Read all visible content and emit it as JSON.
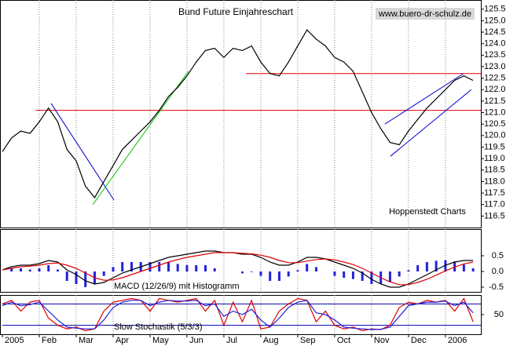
{
  "chart_data": [
    {
      "type": "line",
      "title": "Bund Future Einjahreschart",
      "annotations": [
        "www.buero-dr-schulz.de",
        "Hoppenstedt Charts"
      ],
      "x": [
        0,
        0.25,
        0.5,
        0.75,
        1,
        1.25,
        1.5,
        1.75,
        2,
        2.25,
        2.5,
        2.75,
        3,
        3.25,
        3.5,
        3.75,
        4,
        4.25,
        4.5,
        4.75,
        5,
        5.25,
        5.5,
        5.75,
        6,
        6.25,
        6.5,
        6.75,
        7,
        7.25,
        7.5,
        7.75,
        8,
        8.25,
        8.5,
        8.75,
        9,
        9.25,
        9.5,
        9.75,
        10,
        10.25,
        10.5,
        10.75,
        11,
        11.25,
        11.5,
        11.75,
        12,
        12.25,
        12.5,
        12.75
      ],
      "values": [
        119.3,
        119.9,
        120.2,
        120.1,
        120.6,
        121.2,
        120.6,
        119.4,
        118.9,
        117.8,
        117.3,
        118.0,
        118.7,
        119.4,
        119.8,
        120.2,
        120.6,
        121.1,
        121.7,
        122.1,
        122.6,
        123.2,
        123.7,
        123.8,
        123.4,
        123.8,
        123.7,
        123.9,
        123.2,
        122.7,
        122.6,
        123.2,
        123.9,
        124.6,
        124.2,
        123.9,
        123.4,
        123.2,
        122.8,
        121.9,
        121.0,
        120.3,
        119.7,
        119.6,
        120.2,
        120.7,
        121.2,
        121.6,
        122.0,
        122.4,
        122.6,
        122.4
      ],
      "color": "#000000",
      "xlim": [
        0,
        12.96
      ],
      "ylim": [
        116.0,
        125.9
      ],
      "yticks": [
        116.5,
        {
          "value": 117,
          "label": "117.0"
        },
        117.5,
        {
          "value": 118,
          "label": "118.0"
        },
        118.5,
        {
          "value": 119,
          "label": "119.0"
        },
        119.5,
        {
          "value": 120,
          "label": "120.0"
        },
        120.5,
        {
          "value": 121,
          "label": "121.0"
        },
        121.5,
        {
          "value": 122,
          "label": "122.0"
        },
        122.5,
        {
          "value": 123,
          "label": "123.0"
        },
        123.5,
        {
          "value": 124,
          "label": "124.0"
        },
        124.5,
        {
          "value": 125,
          "label": "125.0"
        },
        125.5
      ],
      "hlines": [
        {
          "value": 121.1,
          "from": 0.9,
          "color": "#e00000"
        },
        {
          "value": 122.7,
          "from": 6.6,
          "color": "#e00000"
        }
      ],
      "trendlines": [
        {
          "x": [
            1.32,
            3.02
          ],
          "y": [
            121.4,
            117.2
          ],
          "color": "#0000cc"
        },
        {
          "x": [
            2.45,
            5.04
          ],
          "y": [
            117.0,
            122.8
          ],
          "color": "#00c000"
        },
        {
          "x": [
            10.36,
            12.49
          ],
          "y": [
            120.5,
            122.7
          ],
          "color": "#0000cc"
        },
        {
          "x": [
            10.51,
            12.7
          ],
          "y": [
            119.1,
            122.0
          ],
          "color": "#0000cc"
        }
      ]
    },
    {
      "type": "macd",
      "label": "MACD (12/26/9) mit Histogramm",
      "x": [
        0,
        0.25,
        0.5,
        0.75,
        1,
        1.25,
        1.5,
        1.75,
        2,
        2.25,
        2.5,
        2.75,
        3,
        3.25,
        3.5,
        3.75,
        4,
        4.25,
        4.5,
        4.75,
        5,
        5.25,
        5.5,
        5.75,
        6,
        6.25,
        6.5,
        6.75,
        7,
        7.25,
        7.5,
        7.75,
        8,
        8.25,
        8.5,
        8.75,
        9,
        9.25,
        9.5,
        9.75,
        10,
        10.25,
        10.5,
        10.75,
        11,
        11.25,
        11.5,
        11.75,
        12,
        12.25,
        12.5,
        12.75
      ],
      "histogram": {
        "color": "#2222dd",
        "values": [
          0,
          0.1,
          0.1,
          0.06,
          0.1,
          0.2,
          0.06,
          -0.3,
          -0.4,
          -0.5,
          -0.4,
          -0.14,
          0.14,
          0.3,
          0.3,
          0.3,
          0.3,
          0.3,
          0.3,
          0.24,
          0.2,
          0.2,
          0.2,
          0.1,
          0,
          0,
          -0.06,
          -0.02,
          -0.14,
          -0.3,
          -0.3,
          -0.16,
          0.04,
          0.24,
          0.14,
          0,
          -0.14,
          -0.2,
          -0.24,
          -0.3,
          -0.4,
          -0.4,
          -0.34,
          -0.16,
          0.04,
          0.2,
          0.3,
          0.34,
          0.36,
          0.32,
          0.22,
          0.1
        ]
      },
      "series": [
        {
          "color": "#000000",
          "values": [
            0.05,
            0.15,
            0.2,
            0.2,
            0.25,
            0.35,
            0.3,
            0.05,
            -0.1,
            -0.3,
            -0.4,
            -0.35,
            -0.2,
            -0.05,
            0.05,
            0.15,
            0.25,
            0.35,
            0.45,
            0.5,
            0.55,
            0.6,
            0.65,
            0.65,
            0.6,
            0.6,
            0.55,
            0.55,
            0.45,
            0.3,
            0.2,
            0.2,
            0.3,
            0.45,
            0.45,
            0.4,
            0.3,
            0.2,
            0.1,
            -0.05,
            -0.25,
            -0.4,
            -0.5,
            -0.5,
            -0.4,
            -0.25,
            -0.1,
            0.05,
            0.2,
            0.3,
            0.35,
            0.35
          ]
        },
        {
          "color": "#dd0000",
          "values": [
            0.05,
            0.1,
            0.15,
            0.17,
            0.2,
            0.25,
            0.27,
            0.2,
            0.1,
            -0.05,
            -0.2,
            -0.28,
            -0.27,
            -0.2,
            -0.1,
            0,
            0.1,
            0.2,
            0.3,
            0.38,
            0.45,
            0.5,
            0.55,
            0.6,
            0.6,
            0.6,
            0.58,
            0.56,
            0.52,
            0.45,
            0.35,
            0.28,
            0.28,
            0.33,
            0.38,
            0.4,
            0.37,
            0.3,
            0.22,
            0.1,
            -0.05,
            -0.2,
            -0.33,
            -0.42,
            -0.42,
            -0.35,
            -0.25,
            -0.12,
            0.02,
            0.14,
            0.24,
            0.3
          ]
        }
      ],
      "xlim": [
        0,
        12.96
      ],
      "ylim": [
        -0.65,
        1.35
      ],
      "yticks": [
        0.5,
        {
          "value": 0,
          "label": "0.0"
        },
        -0.5
      ]
    },
    {
      "type": "stochastic",
      "label": "Slow Stochastik (5/3/3)",
      "x": [
        0,
        0.25,
        0.5,
        0.75,
        1,
        1.25,
        1.5,
        1.75,
        2,
        2.25,
        2.5,
        2.75,
        3,
        3.25,
        3.5,
        3.75,
        4,
        4.25,
        4.5,
        4.75,
        5,
        5.25,
        5.5,
        5.75,
        6,
        6.25,
        6.5,
        6.75,
        7,
        7.25,
        7.5,
        7.75,
        8,
        8.25,
        8.5,
        8.75,
        9,
        9.25,
        9.5,
        9.75,
        10,
        10.25,
        10.5,
        10.75,
        11,
        11.25,
        11.5,
        11.75,
        12,
        12.25,
        12.5,
        12.75
      ],
      "series": [
        {
          "color": "#dd0000",
          "values": [
            80,
            90,
            60,
            85,
            90,
            40,
            20,
            10,
            15,
            5,
            10,
            60,
            85,
            90,
            95,
            90,
            60,
            95,
            90,
            85,
            90,
            95,
            60,
            90,
            20,
            85,
            30,
            90,
            10,
            15,
            60,
            80,
            95,
            90,
            30,
            60,
            20,
            10,
            15,
            5,
            10,
            8,
            20,
            70,
            85,
            80,
            90,
            85,
            90,
            60,
            95,
            30
          ]
        },
        {
          "color": "#2222dd",
          "values": [
            75,
            85,
            75,
            78,
            85,
            60,
            35,
            15,
            12,
            10,
            10,
            35,
            70,
            85,
            90,
            90,
            75,
            85,
            90,
            88,
            88,
            90,
            75,
            80,
            45,
            60,
            50,
            65,
            35,
            15,
            40,
            70,
            85,
            90,
            55,
            50,
            35,
            15,
            12,
            10,
            8,
            9,
            15,
            45,
            75,
            80,
            85,
            85,
            88,
            75,
            85,
            55
          ]
        }
      ],
      "levels": [
        20,
        80
      ],
      "level_color": "#0000aa",
      "xlim": [
        0,
        12.96
      ],
      "ylim": [
        -5,
        105
      ],
      "yticks": [
        50
      ],
      "xticks": [
        {
          "value": 0,
          "label": "2005"
        },
        {
          "value": 1,
          "label": "Feb"
        },
        {
          "value": 2,
          "label": "Mar"
        },
        {
          "value": 3,
          "label": "Apr"
        },
        {
          "value": 4,
          "label": "May"
        },
        {
          "value": 5,
          "label": "Jun"
        },
        {
          "value": 6,
          "label": "Jul"
        },
        {
          "value": 7,
          "label": "Aug"
        },
        {
          "value": 8,
          "label": "Sep"
        },
        {
          "value": 9,
          "label": "Oct"
        },
        {
          "value": 10,
          "label": "Nov"
        },
        {
          "value": 11,
          "label": "Dec"
        },
        {
          "value": 12,
          "label": "2006"
        }
      ]
    }
  ]
}
